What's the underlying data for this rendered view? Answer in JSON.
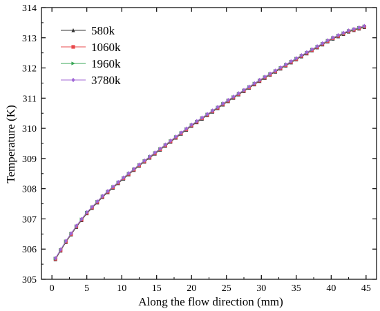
{
  "chart_data": {
    "type": "line",
    "xlabel": "Along the flow direction (mm)",
    "ylabel": "Temperature (K)",
    "xlim": [
      -1.5,
      46.5
    ],
    "ylim": [
      305,
      314
    ],
    "xticks": [
      0,
      5,
      10,
      15,
      20,
      25,
      30,
      35,
      40,
      45
    ],
    "yticks": [
      305,
      306,
      307,
      308,
      309,
      310,
      311,
      312,
      313,
      314
    ],
    "grid": false,
    "legend_position": "top-left",
    "curve_model": {
      "x_start": 0.5,
      "x_step": 0.75,
      "x_end": 44.75,
      "knots_x": [
        0.5,
        2,
        3.5,
        5,
        7.5,
        10,
        12.5,
        15,
        20,
        25,
        30,
        35,
        40,
        42.5,
        44.75
      ],
      "knots_y": [
        305.68,
        306.25,
        306.75,
        307.2,
        307.8,
        308.3,
        308.78,
        309.22,
        310.1,
        310.88,
        311.62,
        312.3,
        312.96,
        313.22,
        313.37
      ]
    },
    "series": [
      {
        "name": "580k",
        "color": "#333333",
        "marker": "triangle",
        "offset": -0.02
      },
      {
        "name": "1060k",
        "color": "#e8484b",
        "marker": "square",
        "offset": 0.0
      },
      {
        "name": "1960k",
        "color": "#3aa757",
        "marker": "triangle-right",
        "offset": 0.01
      },
      {
        "name": "3780k",
        "color": "#a066d6",
        "marker": "diamond",
        "offset": 0.02
      }
    ]
  }
}
